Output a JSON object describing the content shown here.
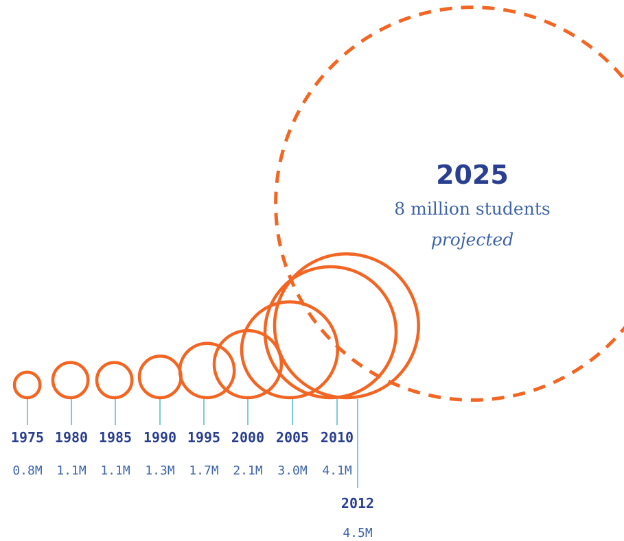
{
  "chart_data": {
    "type": "bubble",
    "title": "",
    "points": [
      {
        "year": "1975",
        "label": "0.8M",
        "value": 0.8
      },
      {
        "year": "1980",
        "label": "1.1M",
        "value": 1.1
      },
      {
        "year": "1985",
        "label": "1.1M",
        "value": 1.1
      },
      {
        "year": "1990",
        "label": "1.3M",
        "value": 1.3
      },
      {
        "year": "1995",
        "label": "1.7M",
        "value": 1.7
      },
      {
        "year": "2000",
        "label": "2.1M",
        "value": 2.1
      },
      {
        "year": "2005",
        "label": "3.0M",
        "value": 3.0
      },
      {
        "year": "2010",
        "label": "4.1M",
        "value": 4.1
      },
      {
        "year": "2012",
        "label": "4.5M",
        "value": 4.5
      }
    ],
    "projection": {
      "year": "2025",
      "value": 8,
      "value_text": "8 million students",
      "note": "projected"
    }
  },
  "colors": {
    "circle_stroke": "#f26522",
    "leader_line": "#4fb8d8",
    "year_text": "#2a3f8f",
    "value_text": "#3d64a8"
  }
}
